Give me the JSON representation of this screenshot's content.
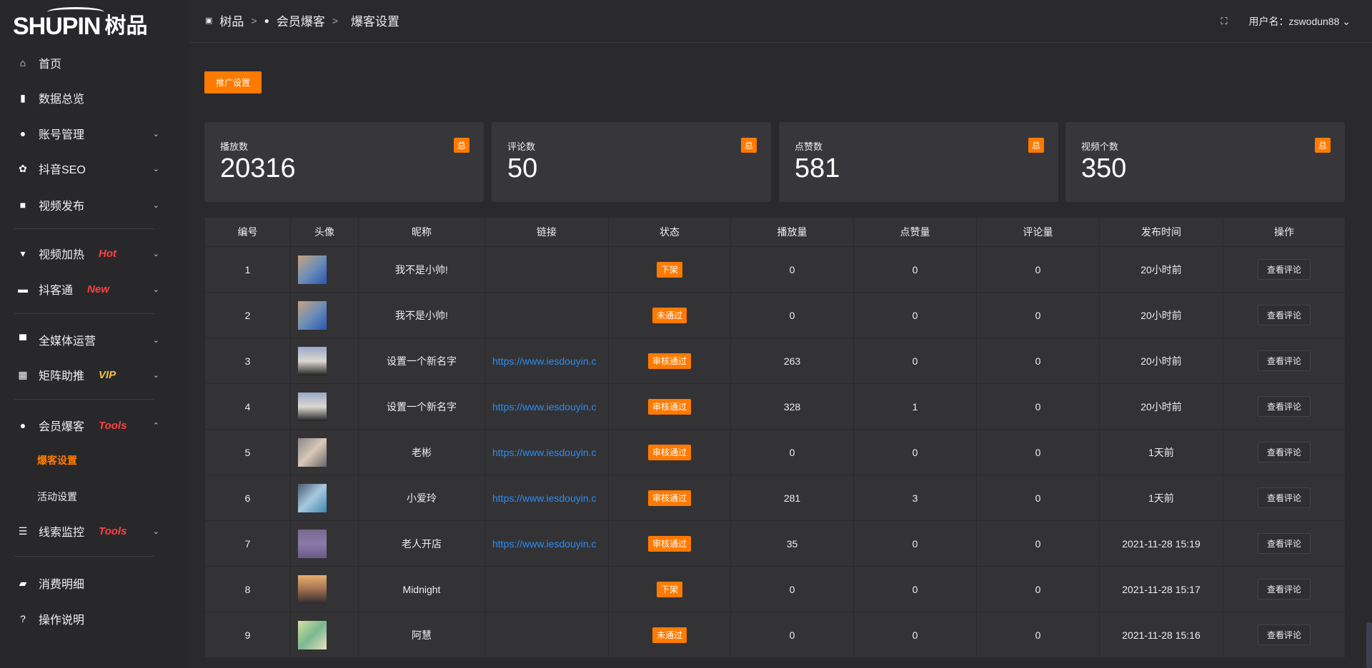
{
  "brand": {
    "logo_en": "SHUPIN",
    "logo_cn": "树品"
  },
  "header": {
    "breadcrumbs": [
      "树品",
      "会员爆客",
      "爆客设置"
    ],
    "username": "用户名：zswodun88"
  },
  "sidebar": {
    "items": [
      {
        "label": "首页",
        "icon": "home-icon",
        "glyph": "⌂"
      },
      {
        "label": "数据总览",
        "icon": "bar-chart-icon",
        "glyph": "▮"
      },
      {
        "label": "账号管理",
        "icon": "user-icon",
        "glyph": "●",
        "chev": "⌄"
      },
      {
        "label": "抖音SEO",
        "icon": "gear-icon",
        "glyph": "✿",
        "chev": "⌄"
      },
      {
        "label": "视频发布",
        "icon": "camera-icon",
        "glyph": "■",
        "chev": "⌄"
      },
      {
        "label": "视频加热",
        "icon": "sign-icon",
        "glyph": "▾",
        "tag": "Hot",
        "chev": "⌄"
      },
      {
        "label": "抖客通",
        "icon": "comment-icon",
        "glyph": "▬",
        "tag": "New",
        "chev": "⌄"
      },
      {
        "label": "全媒体运营",
        "icon": "monitor-icon",
        "glyph": "▀",
        "chev": "⌄"
      },
      {
        "label": "矩阵助推",
        "icon": "grid-icon",
        "glyph": "▦",
        "tag": "VIP",
        "chev": "⌄"
      },
      {
        "label": "会员爆客",
        "icon": "user-icon",
        "glyph": "●",
        "tag": "Tools",
        "chev": "⌃"
      },
      {
        "label": "线索监控",
        "icon": "sliders-icon",
        "glyph": "☰",
        "tag": "Tools",
        "chev": "⌄"
      },
      {
        "label": "消费明细",
        "icon": "wallet-icon",
        "glyph": "▰"
      },
      {
        "label": "操作说明",
        "icon": "help-icon",
        "glyph": "?"
      }
    ],
    "sub_items": [
      "爆客设置",
      "活动设置"
    ]
  },
  "toolbar": {
    "promo_label": "推广设置"
  },
  "stats": [
    {
      "label": "播放数",
      "value": "20316",
      "badge": "总"
    },
    {
      "label": "评论数",
      "value": "50",
      "badge": "总"
    },
    {
      "label": "点赞数",
      "value": "581",
      "badge": "总"
    },
    {
      "label": "视频个数",
      "value": "350",
      "badge": "总"
    }
  ],
  "table": {
    "columns": [
      "编号",
      "头像",
      "昵称",
      "链接",
      "状态",
      "播放量",
      "点赞量",
      "评论量",
      "发布时间",
      "操作"
    ],
    "rows": [
      {
        "id": "1",
        "avatar": "linear-gradient(135deg,#c9a27a,#6e8fb8,#2a58b0)",
        "name": "我不是小帅!",
        "link": "",
        "status": "下架",
        "plays": "0",
        "likes": "0",
        "comments": "0",
        "time": "20小时前",
        "action": "查看评论"
      },
      {
        "id": "2",
        "avatar": "linear-gradient(135deg,#c9a27a,#6e8fb8,#2a58b0)",
        "name": "我不是小帅!",
        "link": "",
        "status": "未通过",
        "plays": "0",
        "likes": "0",
        "comments": "0",
        "time": "20小时前",
        "action": "查看评论"
      },
      {
        "id": "3",
        "avatar": "linear-gradient(180deg,#9aa8c8,#dcd8d0,#222)",
        "name": "设置一个新名字",
        "link": "https://www.iesdouyin.c",
        "status": "审核通过",
        "plays": "263",
        "likes": "0",
        "comments": "0",
        "time": "20小时前",
        "action": "查看评论"
      },
      {
        "id": "4",
        "avatar": "linear-gradient(180deg,#9aa8c8,#dcd8d0,#222)",
        "name": "设置一个新名字",
        "link": "https://www.iesdouyin.c",
        "status": "审核通过",
        "plays": "328",
        "likes": "1",
        "comments": "0",
        "time": "20小时前",
        "action": "查看评论"
      },
      {
        "id": "5",
        "avatar": "linear-gradient(135deg,#888,#d8c8b8,#666)",
        "name": "老彬",
        "link": "https://www.iesdouyin.c",
        "status": "审核通过",
        "plays": "0",
        "likes": "0",
        "comments": "0",
        "time": "1天前",
        "action": "查看评论"
      },
      {
        "id": "6",
        "avatar": "linear-gradient(135deg,#4a5a70,#a8c8e0,#3a8ab0)",
        "name": "小爱玲",
        "link": "https://www.iesdouyin.c",
        "status": "审核通过",
        "plays": "281",
        "likes": "3",
        "comments": "0",
        "time": "1天前",
        "action": "查看评论"
      },
      {
        "id": "7",
        "avatar": "linear-gradient(180deg,#7a6890,#8a7aa8,#6a5a88)",
        "name": "老人开店",
        "link": "https://www.iesdouyin.c",
        "status": "审核通过",
        "plays": "35",
        "likes": "0",
        "comments": "0",
        "time": "2021-11-28 15:19",
        "action": "查看评论"
      },
      {
        "id": "8",
        "avatar": "linear-gradient(180deg,#e8b070,#a07050,#2a2a30)",
        "name": "Midnight",
        "link": "",
        "status": "下架",
        "plays": "0",
        "likes": "0",
        "comments": "0",
        "time": "2021-11-28 15:17",
        "action": "查看评论"
      },
      {
        "id": "9",
        "avatar": "linear-gradient(135deg,#d8e0a0,#7ab890,#e8e0c0)",
        "name": "阿慧",
        "link": "",
        "status": "未通过",
        "plays": "0",
        "likes": "0",
        "comments": "0",
        "time": "2021-11-28 15:16",
        "action": "查看评论"
      }
    ]
  },
  "colors": {
    "accent": "#ff7a00",
    "link": "#2d8cf0",
    "tag_red": "#ff4040",
    "tag_vip": "#f5c242"
  }
}
